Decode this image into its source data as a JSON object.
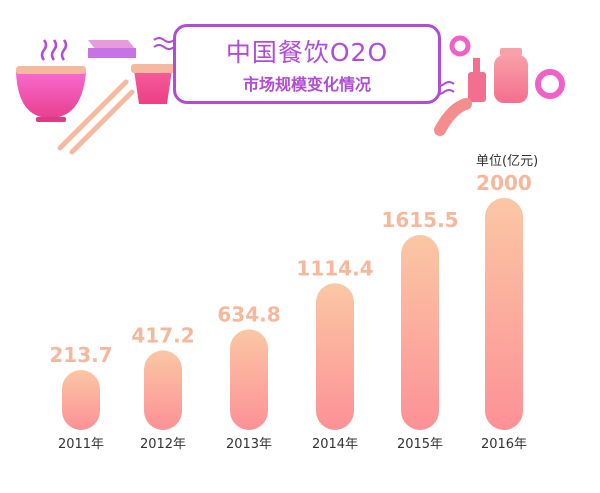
{
  "title": "中国餐饮O2O",
  "subtitle": "市场规模变化情况",
  "unit": "单位(亿元)",
  "colors": {
    "accent": "#b04cd6",
    "bar_top": "#fbc7a4",
    "bar_bottom": "#fc9196",
    "value_text": "#f7b79b",
    "pink": "#f060c8"
  },
  "icons": [
    "noodle-bowl-icon",
    "chopsticks-icon",
    "steam-icon",
    "tray-icon",
    "cup-icon",
    "wave-icon",
    "bottle-icon",
    "jar-icon",
    "ring-icon",
    "sausage-icon"
  ],
  "chart_data": {
    "type": "bar",
    "categories": [
      "2011年",
      "2012年",
      "2013年",
      "2014年",
      "2015年",
      "2016年"
    ],
    "values": [
      213.7,
      417.2,
      634.8,
      1114.4,
      1615.5,
      2000
    ],
    "value_labels": [
      "213.7",
      "417.2",
      "634.8",
      "1114.4",
      "1615.5",
      "2000"
    ],
    "ylim": [
      0,
      2000
    ]
  }
}
